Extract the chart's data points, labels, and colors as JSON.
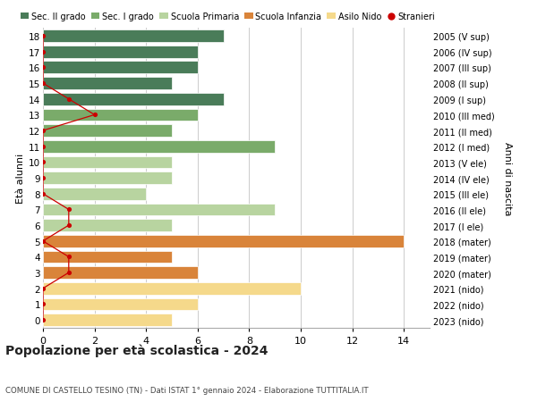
{
  "ages": [
    18,
    17,
    16,
    15,
    14,
    13,
    12,
    11,
    10,
    9,
    8,
    7,
    6,
    5,
    4,
    3,
    2,
    1,
    0
  ],
  "years": [
    "2005 (V sup)",
    "2006 (IV sup)",
    "2007 (III sup)",
    "2008 (II sup)",
    "2009 (I sup)",
    "2010 (III med)",
    "2011 (II med)",
    "2012 (I med)",
    "2013 (V ele)",
    "2014 (IV ele)",
    "2015 (III ele)",
    "2016 (II ele)",
    "2017 (I ele)",
    "2018 (mater)",
    "2019 (mater)",
    "2020 (mater)",
    "2021 (nido)",
    "2022 (nido)",
    "2023 (nido)"
  ],
  "bar_values": [
    7,
    6,
    6,
    5,
    7,
    6,
    5,
    9,
    5,
    5,
    4,
    9,
    5,
    14,
    5,
    6,
    10,
    6,
    5
  ],
  "bar_colors": [
    "#4a7c59",
    "#4a7c59",
    "#4a7c59",
    "#4a7c59",
    "#4a7c59",
    "#7aab6a",
    "#7aab6a",
    "#7aab6a",
    "#b8d4a0",
    "#b8d4a0",
    "#b8d4a0",
    "#b8d4a0",
    "#b8d4a0",
    "#d9843a",
    "#d9843a",
    "#d9843a",
    "#f5d98b",
    "#f5d98b",
    "#f5d98b"
  ],
  "stranieri_values": [
    0,
    0,
    0,
    0,
    1,
    2,
    0,
    0,
    0,
    0,
    0,
    1,
    1,
    0,
    1,
    1,
    0,
    0,
    0
  ],
  "legend_labels": [
    "Sec. II grado",
    "Sec. I grado",
    "Scuola Primaria",
    "Scuola Infanzia",
    "Asilo Nido",
    "Stranieri"
  ],
  "legend_colors": [
    "#4a7c59",
    "#7aab6a",
    "#b8d4a0",
    "#d9843a",
    "#f5d98b",
    "#cc0000"
  ],
  "title": "Popolazione per età scolastica - 2024",
  "subtitle": "COMUNE DI CASTELLO TESINO (TN) - Dati ISTAT 1° gennaio 2024 - Elaborazione TUTTITALIA.IT",
  "ylabel_left": "Età alunni",
  "ylabel_right": "Anni di nascita",
  "xlim": [
    0,
    15
  ],
  "stranieri_color": "#cc0000",
  "grid_color": "#cccccc",
  "bar_height": 0.78
}
